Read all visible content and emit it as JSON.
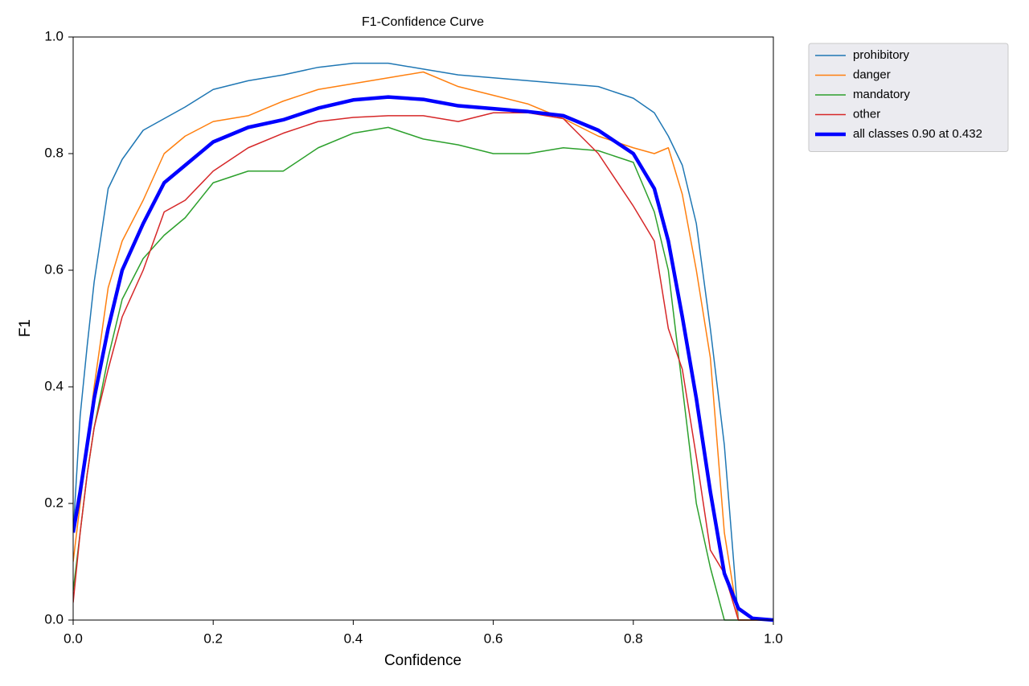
{
  "chart_data": {
    "type": "line",
    "title": "F1-Confidence Curve",
    "x_label": "Confidence",
    "y_label": "F1",
    "x": [
      0,
      0.01,
      0.02,
      0.03,
      0.05,
      0.07,
      0.1,
      0.13,
      0.16,
      0.2,
      0.25,
      0.3,
      0.35,
      0.4,
      0.45,
      0.5,
      0.55,
      0.6,
      0.65,
      0.7,
      0.75,
      0.8,
      0.83,
      0.85,
      0.87,
      0.89,
      0.91,
      0.93,
      0.95,
      0.97,
      1.0
    ],
    "series": [
      {
        "name": "prohibitory",
        "color": "#1f77b4",
        "linewidth": 1.5,
        "values": [
          0.15,
          0.35,
          0.47,
          0.58,
          0.74,
          0.79,
          0.84,
          0.86,
          0.88,
          0.91,
          0.925,
          0.935,
          0.948,
          0.955,
          0.955,
          0.945,
          0.935,
          0.93,
          0.925,
          0.92,
          0.915,
          0.895,
          0.87,
          0.83,
          0.78,
          0.68,
          0.5,
          0.3,
          0,
          0,
          0
        ]
      },
      {
        "name": "danger",
        "color": "#ff7f0e",
        "linewidth": 1.5,
        "values": [
          0.1,
          0.2,
          0.3,
          0.4,
          0.57,
          0.65,
          0.72,
          0.8,
          0.83,
          0.855,
          0.865,
          0.89,
          0.91,
          0.92,
          0.93,
          0.94,
          0.915,
          0.9,
          0.885,
          0.86,
          0.83,
          0.81,
          0.8,
          0.81,
          0.73,
          0.6,
          0.45,
          0.15,
          0,
          0,
          0
        ]
      },
      {
        "name": "mandatory",
        "color": "#2ca02c",
        "linewidth": 1.5,
        "values": [
          0.05,
          0.15,
          0.25,
          0.33,
          0.45,
          0.55,
          0.62,
          0.66,
          0.69,
          0.75,
          0.77,
          0.77,
          0.81,
          0.835,
          0.845,
          0.825,
          0.815,
          0.8,
          0.8,
          0.81,
          0.805,
          0.785,
          0.7,
          0.6,
          0.4,
          0.2,
          0.09,
          0,
          0,
          0,
          0
        ]
      },
      {
        "name": "other",
        "color": "#d62728",
        "linewidth": 1.5,
        "values": [
          0.03,
          0.15,
          0.25,
          0.33,
          0.43,
          0.52,
          0.6,
          0.7,
          0.72,
          0.77,
          0.81,
          0.835,
          0.855,
          0.862,
          0.865,
          0.865,
          0.855,
          0.87,
          0.87,
          0.86,
          0.8,
          0.71,
          0.65,
          0.5,
          0.43,
          0.28,
          0.12,
          0.08,
          0,
          0,
          0
        ]
      },
      {
        "name": "all classes 0.90 at 0.432",
        "color": "#0000ff",
        "linewidth": 4.5,
        "values": [
          0.15,
          0.22,
          0.3,
          0.38,
          0.5,
          0.6,
          0.68,
          0.75,
          0.78,
          0.82,
          0.845,
          0.858,
          0.878,
          0.892,
          0.897,
          0.893,
          0.882,
          0.877,
          0.872,
          0.865,
          0.84,
          0.8,
          0.74,
          0.65,
          0.52,
          0.38,
          0.22,
          0.08,
          0.02,
          0.003,
          0
        ]
      }
    ],
    "xlim": [
      0,
      1
    ],
    "ylim": [
      0,
      1
    ],
    "xticks": [
      {
        "value": 0,
        "label": "0.0"
      },
      0.2,
      0.4,
      0.6,
      0.8,
      {
        "value": 1,
        "label": "1.0"
      }
    ],
    "yticks": [
      {
        "value": 0,
        "label": "0.0"
      },
      0.2,
      0.4,
      0.6,
      0.8,
      {
        "value": 1,
        "label": "1.0"
      }
    ],
    "grid": false,
    "legend": "outside-upper-right"
  }
}
